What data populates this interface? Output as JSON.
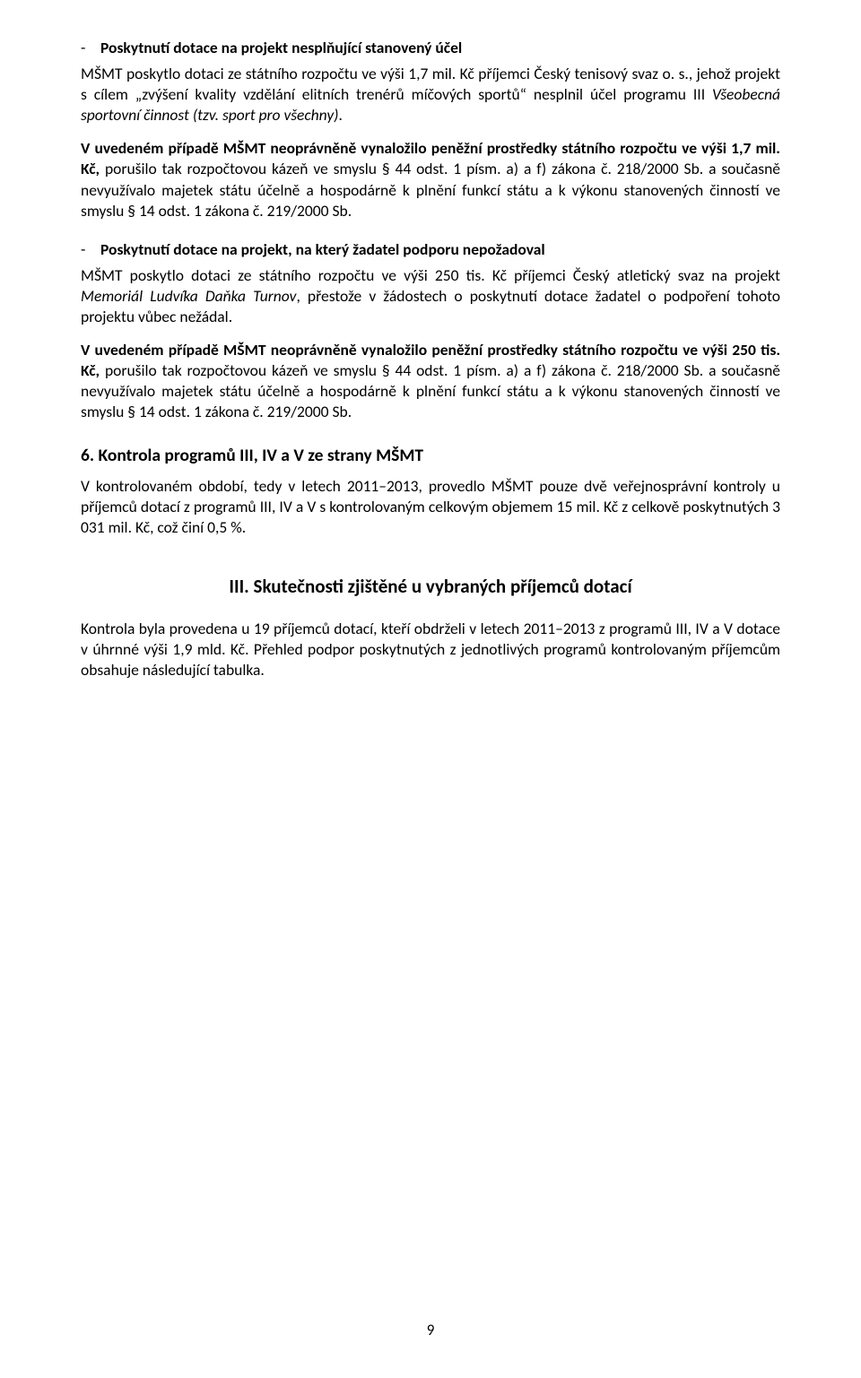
{
  "bullet1": {
    "heading": "Poskytnutí dotace na projekt nesplňující stanovený účel",
    "p1a": "MŠMT poskytlo dotaci ze státního rozpočtu ve výši 1,7 mil. Kč příjemci Český tenisový svaz o. s., jehož projekt s cílem „zvýšení kvality vzdělání elitních trenérů míčových sportů“ nesplnil účel programu III ",
    "p1b_italic": "Všeobecná sportovní činnost (tzv. sport pro všechny)",
    "p1c": ".",
    "p2_bold1": "V uvedeném případě MŠMT neoprávněně vynaložilo peněžní prostředky státního rozpočtu ve výši 1,7 mil. Kč,",
    "p2_rest": " porušilo tak rozpočtovou kázeň ve smyslu § 44 odst. 1 písm. a) a f) zákona č. 218/2000 Sb. a současně nevyužívalo majetek státu účelně a hospodárně k plnění funkcí státu a k výkonu stanovených činností ve smyslu § 14 odst. 1 zákona č. 219/2000 Sb."
  },
  "bullet2": {
    "heading": "Poskytnutí dotace na projekt, na který žadatel podporu nepožadoval",
    "p1a": "MŠMT poskytlo dotaci ze státního rozpočtu ve výši 250 tis. Kč příjemci Český atletický svaz na projekt ",
    "p1b_italic": "Memoriál Ludvíka Daňka Turnov",
    "p1c": ", přestože v žádostech o poskytnutí dotace žadatel o podpoření tohoto projektu vůbec nežádal.",
    "p2_bold1": "V uvedeném případě MŠMT neoprávněně vynaložilo peněžní prostředky státního rozpočtu ve výši 250 tis. Kč,",
    "p2_rest": " porušilo tak rozpočtovou kázeň ve smyslu § 44 odst. 1 písm. a) a f) zákona č. 218/2000 Sb. a současně nevyužívalo majetek státu účelně a hospodárně k plnění funkcí státu a k výkonu stanovených činností ve smyslu § 14 odst. 1 zákona č. 219/2000 Sb."
  },
  "section6": {
    "heading": "6. Kontrola programů III, IV a V ze strany MŠMT",
    "p1": "V kontrolovaném období, tedy v letech 2011–2013, provedlo MŠMT pouze dvě veřejnosprávní kontroly u příjemců dotací z programů III, IV a V s kontrolovaným celkovým objemem 15 mil. Kč z celkově poskytnutých 3 031 mil. Kč, což činí 0,5 %."
  },
  "section3": {
    "heading": "III. Skutečnosti zjištěné u vybraných příjemců dotací",
    "p1": "Kontrola byla provedena u 19 příjemců dotací, kteří obdrželi v letech 2011–2013 z programů III, IV a V dotace v úhrnné výši 1,9 mld. Kč. Přehled podpor poskytnutých z jednotlivých programů kontrolovaným příjemcům obsahuje následující tabulka."
  },
  "page_number": "9"
}
